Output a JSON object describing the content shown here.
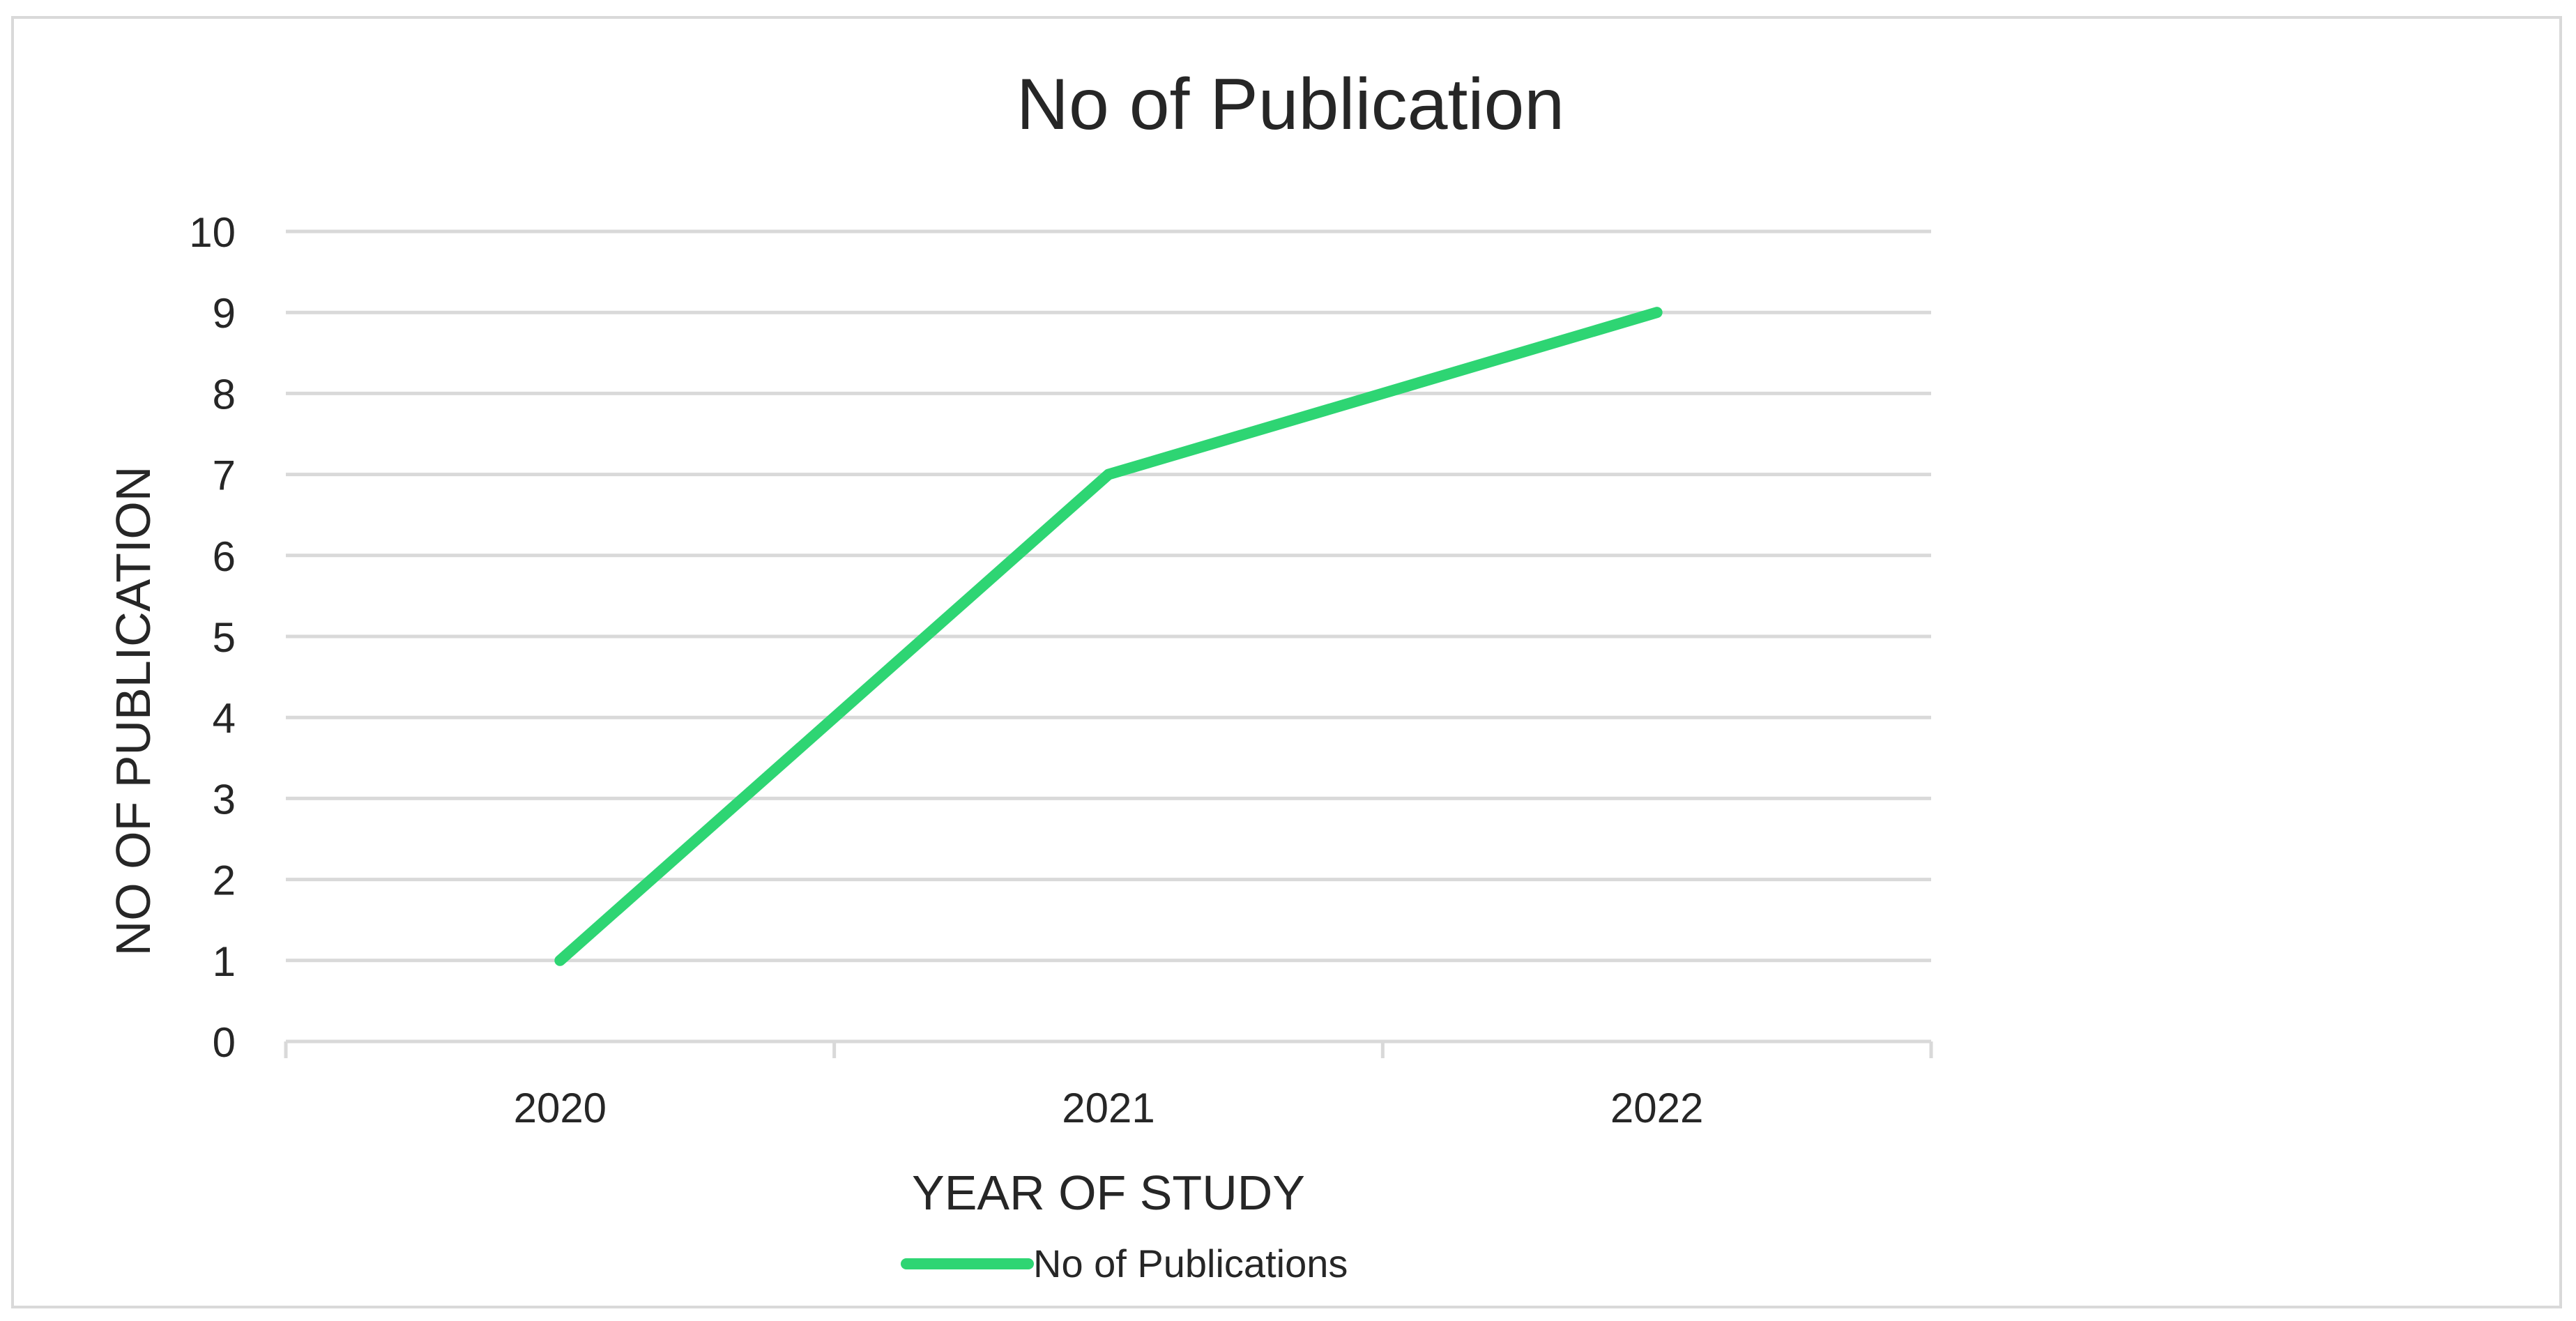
{
  "chart_data": {
    "type": "line",
    "title": "No of Publication",
    "xlabel": "YEAR OF STUDY",
    "ylabel": "NO OF PUBLICATION",
    "categories": [
      "2020",
      "2021",
      "2022"
    ],
    "series": [
      {
        "name": "No of Publications",
        "values": [
          1,
          7,
          9
        ],
        "color": "#2ed573"
      }
    ],
    "ylim": [
      0,
      10
    ],
    "yticks": [
      0,
      1,
      2,
      3,
      4,
      5,
      6,
      7,
      8,
      9,
      10
    ],
    "grid": true,
    "legend": "bottom"
  }
}
